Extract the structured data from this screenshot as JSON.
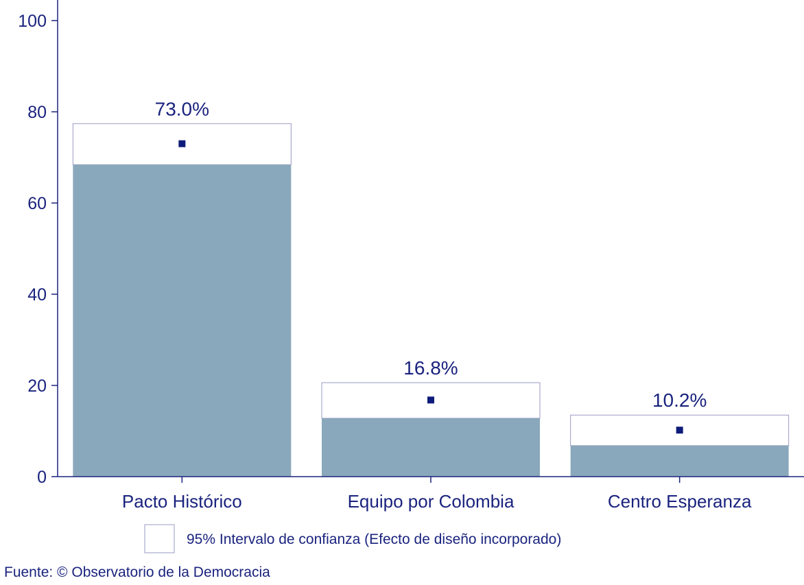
{
  "chart_data": {
    "type": "bar",
    "categories": [
      "Pacto Histórico",
      "Equipo por Colombia",
      "Centro Esperanza"
    ],
    "values": [
      73.0,
      16.8,
      10.2
    ],
    "value_labels": [
      "73.0%",
      "16.8%",
      "10.2%"
    ],
    "ci_lower": [
      68.4,
      12.8,
      6.8
    ],
    "ci_upper": [
      77.4,
      20.6,
      13.5
    ],
    "ylim": [
      0,
      104
    ],
    "yticks": [
      0,
      20,
      40,
      60,
      80,
      100
    ],
    "ytick_labels": [
      "0",
      "20",
      "40",
      "60",
      "80",
      "100"
    ],
    "legend": {
      "label": "95% Intervalo de confianza (Efecto de diseño incorporado)",
      "position": "bottom"
    },
    "source": "Fuente: © Observatorio de la Democracia",
    "grid": false,
    "colors": {
      "bar": "#8aa8bb",
      "axis": "#1a237e",
      "text": "#1a237e",
      "ci_outline": "#9a9ac4",
      "marker": "#0d1b7a"
    }
  }
}
